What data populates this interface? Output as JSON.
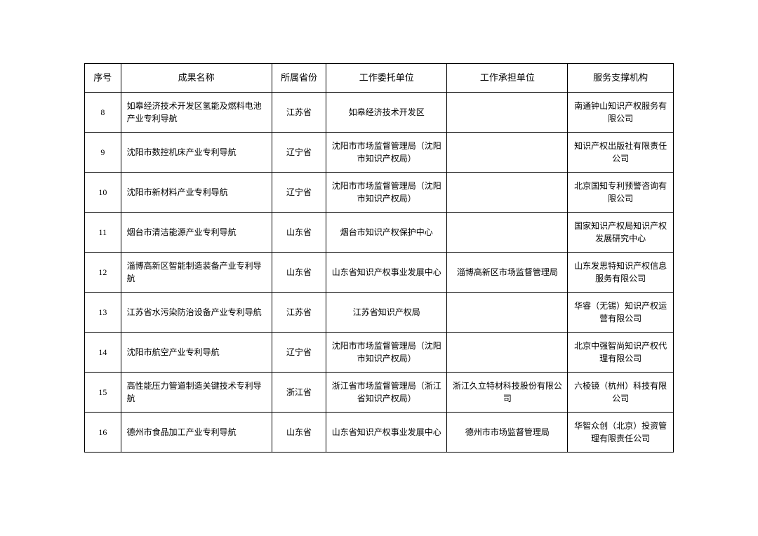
{
  "table": {
    "columns": [
      "序号",
      "成果名称",
      "所属省份",
      "工作委托单位",
      "工作承担单位",
      "服务支撑机构"
    ],
    "rows": [
      {
        "seq": "8",
        "name": "如皋经济技术开发区氢能及燃料电池产业专利导航",
        "province": "江苏省",
        "client": "如皋经济技术开发区",
        "undertake": "",
        "support": "南通钟山知识产权服务有限公司"
      },
      {
        "seq": "9",
        "name": "沈阳市数控机床产业专利导航",
        "province": "辽宁省",
        "client": "沈阳市市场监督管理局（沈阳市知识产权局）",
        "undertake": "",
        "support": "知识产权出版社有限责任公司"
      },
      {
        "seq": "10",
        "name": "沈阳市新材料产业专利导航",
        "province": "辽宁省",
        "client": "沈阳市市场监督管理局（沈阳市知识产权局）",
        "undertake": "",
        "support": "北京国知专利预警咨询有限公司"
      },
      {
        "seq": "11",
        "name": "烟台市清洁能源产业专利导航",
        "province": "山东省",
        "client": "烟台市知识产权保护中心",
        "undertake": "",
        "support": "国家知识产权局知识产权发展研究中心"
      },
      {
        "seq": "12",
        "name": "淄博高新区智能制造装备产业专利导航",
        "province": "山东省",
        "client": "山东省知识产权事业发展中心",
        "undertake": "淄博高新区市场监督管理局",
        "support": "山东发思特知识产权信息服务有限公司"
      },
      {
        "seq": "13",
        "name": "江苏省水污染防治设备产业专利导航",
        "province": "江苏省",
        "client": "江苏省知识产权局",
        "undertake": "",
        "support": "华睿（无锡）知识产权运营有限公司"
      },
      {
        "seq": "14",
        "name": "沈阳市航空产业专利导航",
        "province": "辽宁省",
        "client": "沈阳市市场监督管理局（沈阳市知识产权局）",
        "undertake": "",
        "support": "北京中强智尚知识产权代理有限公司"
      },
      {
        "seq": "15",
        "name": "高性能压力管道制造关键技术专利导航",
        "province": "浙江省",
        "client": "浙江省市场监督管理局（浙江省知识产权局）",
        "undertake": "浙江久立特材科技股份有限公司",
        "support": "六棱镜（杭州）科技有限公司"
      },
      {
        "seq": "16",
        "name": "德州市食品加工产业专利导航",
        "province": "山东省",
        "client": "山东省知识产权事业发展中心",
        "undertake": "德州市市场监督管理局",
        "support": "华智众创（北京）投资管理有限责任公司"
      }
    ],
    "border_color": "#000000",
    "background_color": "#ffffff",
    "font_size_pt": 9,
    "header_font_size_pt": 10
  }
}
